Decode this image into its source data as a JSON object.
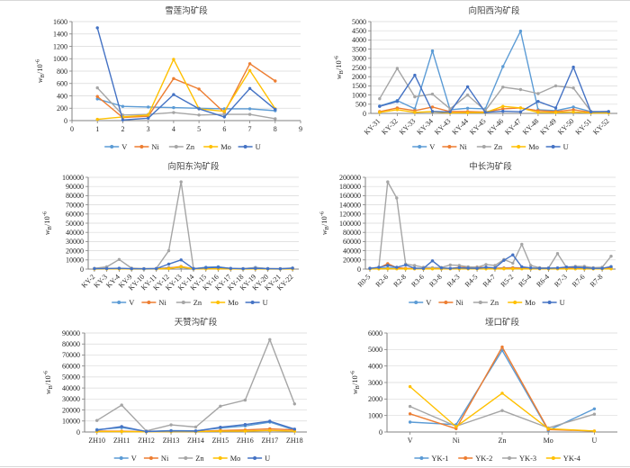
{
  "figure": {
    "background": "#ffffff",
    "grid_color": "#d9d9d9",
    "axis_color": "#808080",
    "text_color": "#262626",
    "title_color": "#404040"
  },
  "axis": {
    "y_label": "wB/10-6",
    "y_label_parts": {
      "base": "w",
      "sub": "B",
      "mid": "/10",
      "sup": "-6"
    }
  },
  "series_colors": {
    "V": "#5B9BD5",
    "Ni": "#ED7D31",
    "Zn": "#A5A5A5",
    "Mo": "#FFC000",
    "U": "#4472C4"
  },
  "chart_data": [
    {
      "type": "line",
      "title": "雪莲沟矿段",
      "ylabel": "wB/10-6",
      "ylim": [
        0,
        1600
      ],
      "ystep": 200,
      "grid": "horizontal",
      "legend_position": "bottom",
      "x_type": "numeric",
      "x_range": [
        0,
        9
      ],
      "x_tick_step": 1,
      "x": [
        1,
        2,
        3,
        4,
        5,
        6,
        7,
        8
      ],
      "series": [
        {
          "name": "V",
          "color": "#5B9BD5",
          "values": [
            350,
            230,
            220,
            210,
            200,
            190,
            190,
            160
          ]
        },
        {
          "name": "Ni",
          "color": "#ED7D31",
          "values": [
            390,
            50,
            70,
            680,
            510,
            130,
            920,
            640
          ]
        },
        {
          "name": "Zn",
          "color": "#A5A5A5",
          "values": [
            530,
            90,
            100,
            130,
            90,
            100,
            100,
            30
          ]
        },
        {
          "name": "Mo",
          "color": "#FFC000",
          "values": [
            20,
            60,
            90,
            990,
            190,
            150,
            810,
            190
          ]
        },
        {
          "name": "U",
          "color": "#4472C4",
          "values": [
            1500,
            10,
            40,
            420,
            190,
            60,
            520,
            180
          ]
        }
      ]
    },
    {
      "type": "line",
      "title": "向阳西沟矿段",
      "ylabel": "wB/10-6",
      "ylim": [
        0,
        5000
      ],
      "ystep": 500,
      "grid": "horizontal",
      "legend_position": "bottom",
      "x_type": "category",
      "x_label_rotation": -45,
      "categories": [
        "KY-31",
        "KY-32",
        "KY-33",
        "KY-34",
        "KY-43",
        "KY-44",
        "KY-45",
        "KY-46",
        "KY-47",
        "KY-48",
        "KY-49",
        "KY-50",
        "KY-51",
        "KY-52"
      ],
      "series": [
        {
          "name": "V",
          "color": "#5B9BD5",
          "values": [
            400,
            700,
            250,
            3400,
            200,
            280,
            250,
            2550,
            4480,
            200,
            150,
            350,
            100,
            80
          ]
        },
        {
          "name": "Ni",
          "color": "#ED7D31",
          "values": [
            100,
            300,
            150,
            350,
            100,
            100,
            80,
            250,
            300,
            150,
            100,
            200,
            60,
            50
          ]
        },
        {
          "name": "Zn",
          "color": "#A5A5A5",
          "values": [
            800,
            2450,
            900,
            1050,
            250,
            1000,
            150,
            1430,
            1300,
            1080,
            1500,
            1380,
            110,
            100
          ]
        },
        {
          "name": "Mo",
          "color": "#FFC000",
          "values": [
            60,
            200,
            60,
            100,
            30,
            40,
            50,
            380,
            300,
            60,
            50,
            80,
            30,
            30
          ]
        },
        {
          "name": "U",
          "color": "#4472C4",
          "values": [
            380,
            650,
            2080,
            110,
            80,
            1450,
            60,
            120,
            90,
            650,
            300,
            2520,
            80,
            100
          ]
        }
      ]
    },
    {
      "type": "line",
      "title": "向阳东沟矿段",
      "ylabel": "wB/10-6",
      "ylim": [
        0,
        100000
      ],
      "ystep": 10000,
      "grid": "horizontal",
      "legend_position": "bottom",
      "x_type": "category",
      "x_label_rotation": -45,
      "categories": [
        "KY-2",
        "KY-3",
        "KY-4",
        "KY-9",
        "KY-10",
        "KY-11",
        "KY-12",
        "KY-13",
        "KY-14",
        "KY-15",
        "KY-16",
        "KY-17",
        "KY-18",
        "KY-19",
        "KY-20",
        "KY-21",
        "KY-22"
      ],
      "series": [
        {
          "name": "V",
          "color": "#5B9BD5",
          "values": [
            400,
            500,
            700,
            300,
            300,
            400,
            1500,
            2000,
            300,
            2000,
            2500,
            600,
            300,
            1800,
            500,
            300,
            900
          ]
        },
        {
          "name": "Ni",
          "color": "#ED7D31",
          "values": [
            300,
            400,
            600,
            200,
            200,
            300,
            1000,
            2800,
            300,
            500,
            600,
            300,
            200,
            400,
            300,
            200,
            400
          ]
        },
        {
          "name": "Zn",
          "color": "#A5A5A5",
          "values": [
            800,
            2500,
            10500,
            1000,
            500,
            800,
            20000,
            95000,
            800,
            1200,
            1800,
            700,
            500,
            1500,
            600,
            500,
            1200
          ]
        },
        {
          "name": "Mo",
          "color": "#FFC000",
          "values": [
            100,
            150,
            250,
            100,
            100,
            150,
            600,
            2500,
            150,
            250,
            250,
            150,
            100,
            200,
            100,
            100,
            200
          ]
        },
        {
          "name": "U",
          "color": "#4472C4",
          "values": [
            500,
            600,
            900,
            400,
            300,
            500,
            5500,
            10000,
            400,
            1500,
            2000,
            800,
            400,
            800,
            400,
            300,
            1000
          ]
        }
      ]
    },
    {
      "type": "line",
      "title": "中长沟矿段",
      "ylabel": "wB/10-6",
      "ylim": [
        0,
        200000
      ],
      "ystep": 20000,
      "grid": "horizontal",
      "legend_position": "bottom",
      "x_type": "category",
      "x_label_rotation": -45,
      "label_every": 2,
      "categories": [
        "R0-5",
        "R2-6",
        "R2-8",
        "R3-6",
        "R3-8",
        "R4-3",
        "R4-5",
        "R4-7",
        "R5-2",
        "R5-4",
        "R6-4",
        "R7-3",
        "R7-6",
        "R7-8"
      ],
      "series": [
        {
          "name": "V",
          "color": "#5B9BD5",
          "values": [
            1500,
            2000,
            2500,
            2000,
            1500,
            1500,
            1500,
            2000,
            1500,
            1500,
            2000,
            2000,
            2000,
            2500,
            2000,
            2500,
            3000,
            2500,
            1500,
            1500,
            1500,
            2000,
            2000,
            2000,
            1500,
            1500,
            2500,
            3000
          ]
        },
        {
          "name": "Ni",
          "color": "#ED7D31",
          "values": [
            1000,
            2000,
            12000,
            3000,
            1500,
            1000,
            1000,
            1500,
            1000,
            1000,
            4000,
            3500,
            4500,
            3000,
            1500,
            2000,
            2500,
            2000,
            1500,
            1000,
            1000,
            1500,
            1500,
            1500,
            1000,
            1000,
            2000,
            2500
          ]
        },
        {
          "name": "Zn",
          "color": "#A5A5A5",
          "values": [
            2000,
            3000,
            190000,
            155000,
            11000,
            8000,
            4000,
            3000,
            3500,
            9000,
            8000,
            5000,
            4000,
            10000,
            8000,
            21000,
            13000,
            54000,
            8000,
            3000,
            2500,
            34000,
            4000,
            6000,
            6000,
            3000,
            4000,
            28000
          ]
        },
        {
          "name": "Mo",
          "color": "#FFC000",
          "values": [
            300,
            400,
            800,
            500,
            300,
            300,
            300,
            400,
            300,
            300,
            400,
            400,
            400,
            400,
            300,
            500,
            600,
            500,
            300,
            300,
            300,
            400,
            300,
            300,
            300,
            300,
            400,
            500
          ]
        },
        {
          "name": "U",
          "color": "#4472C4",
          "values": [
            1500,
            4000,
            8000,
            4000,
            9000,
            2000,
            1500,
            18000,
            2500,
            1500,
            3000,
            2000,
            1500,
            4000,
            2500,
            19000,
            31000,
            5000,
            2500,
            1500,
            2000,
            2500,
            4500,
            4000,
            3000,
            1500,
            1500,
            5500
          ]
        }
      ]
    },
    {
      "type": "line",
      "title": "天赞沟矿段",
      "ylabel": "wB/10-6",
      "ylim": [
        0,
        90000
      ],
      "ystep": 10000,
      "grid": "horizontal",
      "legend_position": "bottom",
      "x_type": "category",
      "x_label_rotation": 0,
      "categories": [
        "ZH10",
        "ZH11",
        "ZH12",
        "ZH13",
        "ZH14",
        "ZH15",
        "ZH16",
        "ZH17",
        "ZH18"
      ],
      "series": [
        {
          "name": "V",
          "color": "#5B9BD5",
          "values": [
            2200,
            4000,
            600,
            1300,
            1100,
            3600,
            5500,
            9000,
            1800
          ]
        },
        {
          "name": "Ni",
          "color": "#ED7D31",
          "values": [
            900,
            700,
            300,
            600,
            500,
            1400,
            1900,
            2900,
            1900
          ]
        },
        {
          "name": "Zn",
          "color": "#A5A5A5",
          "values": [
            10500,
            24500,
            1000,
            6500,
            4500,
            23500,
            29000,
            84000,
            25500
          ]
        },
        {
          "name": "Mo",
          "color": "#FFC000",
          "values": [
            400,
            300,
            200,
            300,
            300,
            700,
            800,
            1400,
            700
          ]
        },
        {
          "name": "U",
          "color": "#4472C4",
          "values": [
            1700,
            5000,
            400,
            1000,
            800,
            4300,
            6800,
            9800,
            2600
          ]
        }
      ]
    },
    {
      "type": "line",
      "title": "垭口矿段",
      "ylabel": "wB/10-6",
      "ylim": [
        0,
        6000
      ],
      "ystep": 1000,
      "grid": "horizontal",
      "legend_position": "bottom",
      "x_type": "category",
      "x_label_rotation": 0,
      "categories": [
        "V",
        "Ni",
        "Zn",
        "Mo",
        "U"
      ],
      "series": [
        {
          "name": "YK-1",
          "color": "#5B9BD5",
          "values": [
            600,
            450,
            4950,
            100,
            1400
          ]
        },
        {
          "name": "YK-2",
          "color": "#ED7D31",
          "values": [
            1100,
            200,
            5150,
            150,
            60
          ]
        },
        {
          "name": "YK-3",
          "color": "#A5A5A5",
          "values": [
            1550,
            350,
            1300,
            250,
            1080
          ]
        },
        {
          "name": "YK-4",
          "color": "#FFC000",
          "values": [
            2750,
            320,
            2350,
            200,
            60
          ]
        }
      ]
    }
  ]
}
